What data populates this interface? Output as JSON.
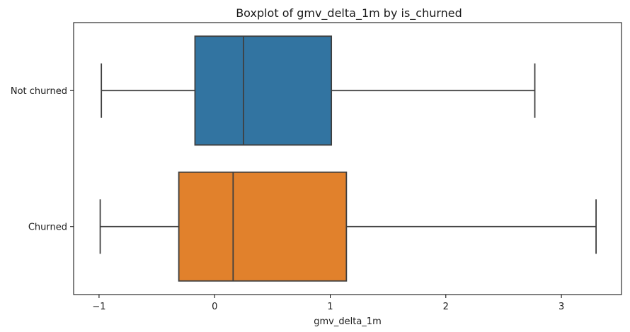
{
  "chart_data": {
    "type": "boxplot",
    "orientation": "horizontal",
    "title": "Boxplot of gmv_delta_1m by is_churned",
    "xlabel": "gmv_delta_1m",
    "ylabel": "",
    "xlim": [
      -1.22,
      3.52
    ],
    "x_ticks": [
      -1,
      0,
      1,
      2,
      3
    ],
    "x_tick_labels": [
      "−1",
      "0",
      "1",
      "2",
      "3"
    ],
    "categories": [
      "Not churned",
      "Churned"
    ],
    "series": [
      {
        "name": "Not churned",
        "color": "#3274a1",
        "whisker_low": -0.98,
        "q1": -0.17,
        "median": 0.25,
        "q3": 1.01,
        "whisker_high": 2.77
      },
      {
        "name": "Churned",
        "color": "#e1812c",
        "whisker_low": -0.99,
        "q1": -0.31,
        "median": 0.16,
        "q3": 1.14,
        "whisker_high": 3.3
      }
    ],
    "grid": false,
    "legend": "none"
  }
}
